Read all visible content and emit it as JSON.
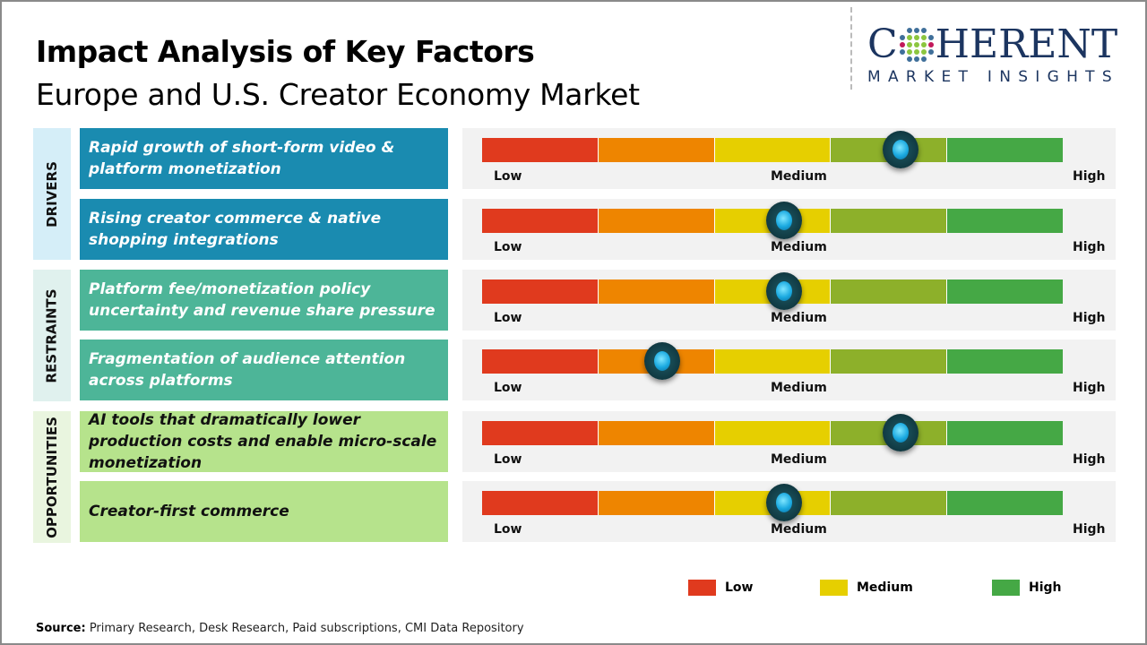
{
  "header": {
    "title": "Impact Analysis of Key Factors",
    "subtitle": "Europe and U.S. Creator Economy Market"
  },
  "logo": {
    "main_left": "C",
    "main_right": "HERENT",
    "sub": "MARKET INSIGHTS",
    "text_color": "#1c3560"
  },
  "gauge_labels": {
    "low": "Low",
    "medium": "Medium",
    "high": "High"
  },
  "scale_colors": [
    "#e03a1e",
    "#ee8500",
    "#e6cf00",
    "#8db02a",
    "#45a845"
  ],
  "categories": [
    {
      "label": "DRIVERS",
      "side_bg": "#d5eef8",
      "box_bg": "#1a8bb0",
      "text_color": "#ffffff",
      "factors": [
        {
          "text": "Rapid growth of short-form video & platform monetization",
          "level": 0.72
        },
        {
          "text": "Rising creator commerce & native shopping integrations",
          "level": 0.52
        }
      ]
    },
    {
      "label": "RESTRAINTS",
      "side_bg": "#e0f1ee",
      "box_bg": "#4db598",
      "text_color": "#ffffff",
      "factors": [
        {
          "text": "Platform fee/monetization policy uncertainty and revenue share pressure",
          "level": 0.52
        },
        {
          "text": "Fragmentation of audience attention across platforms",
          "level": 0.31
        }
      ]
    },
    {
      "label": "OPPORTUNITIES",
      "side_bg": "#e9f5df",
      "box_bg": "#b6e38c",
      "text_color": "#111111",
      "factors": [
        {
          "text": "AI tools that dramatically lower production costs and enable micro-scale monetization",
          "level": 0.72
        },
        {
          "text": "Creator-first commerce",
          "level": 0.52
        }
      ]
    }
  ],
  "legend": [
    {
      "label": "Low",
      "color": "#e03a1e"
    },
    {
      "label": "Medium",
      "color": "#e6cf00"
    },
    {
      "label": "High",
      "color": "#45a845"
    }
  ],
  "source": {
    "label": "Source:",
    "text": " Primary Research, Desk Research, Paid subscriptions, CMI Data Repository"
  }
}
